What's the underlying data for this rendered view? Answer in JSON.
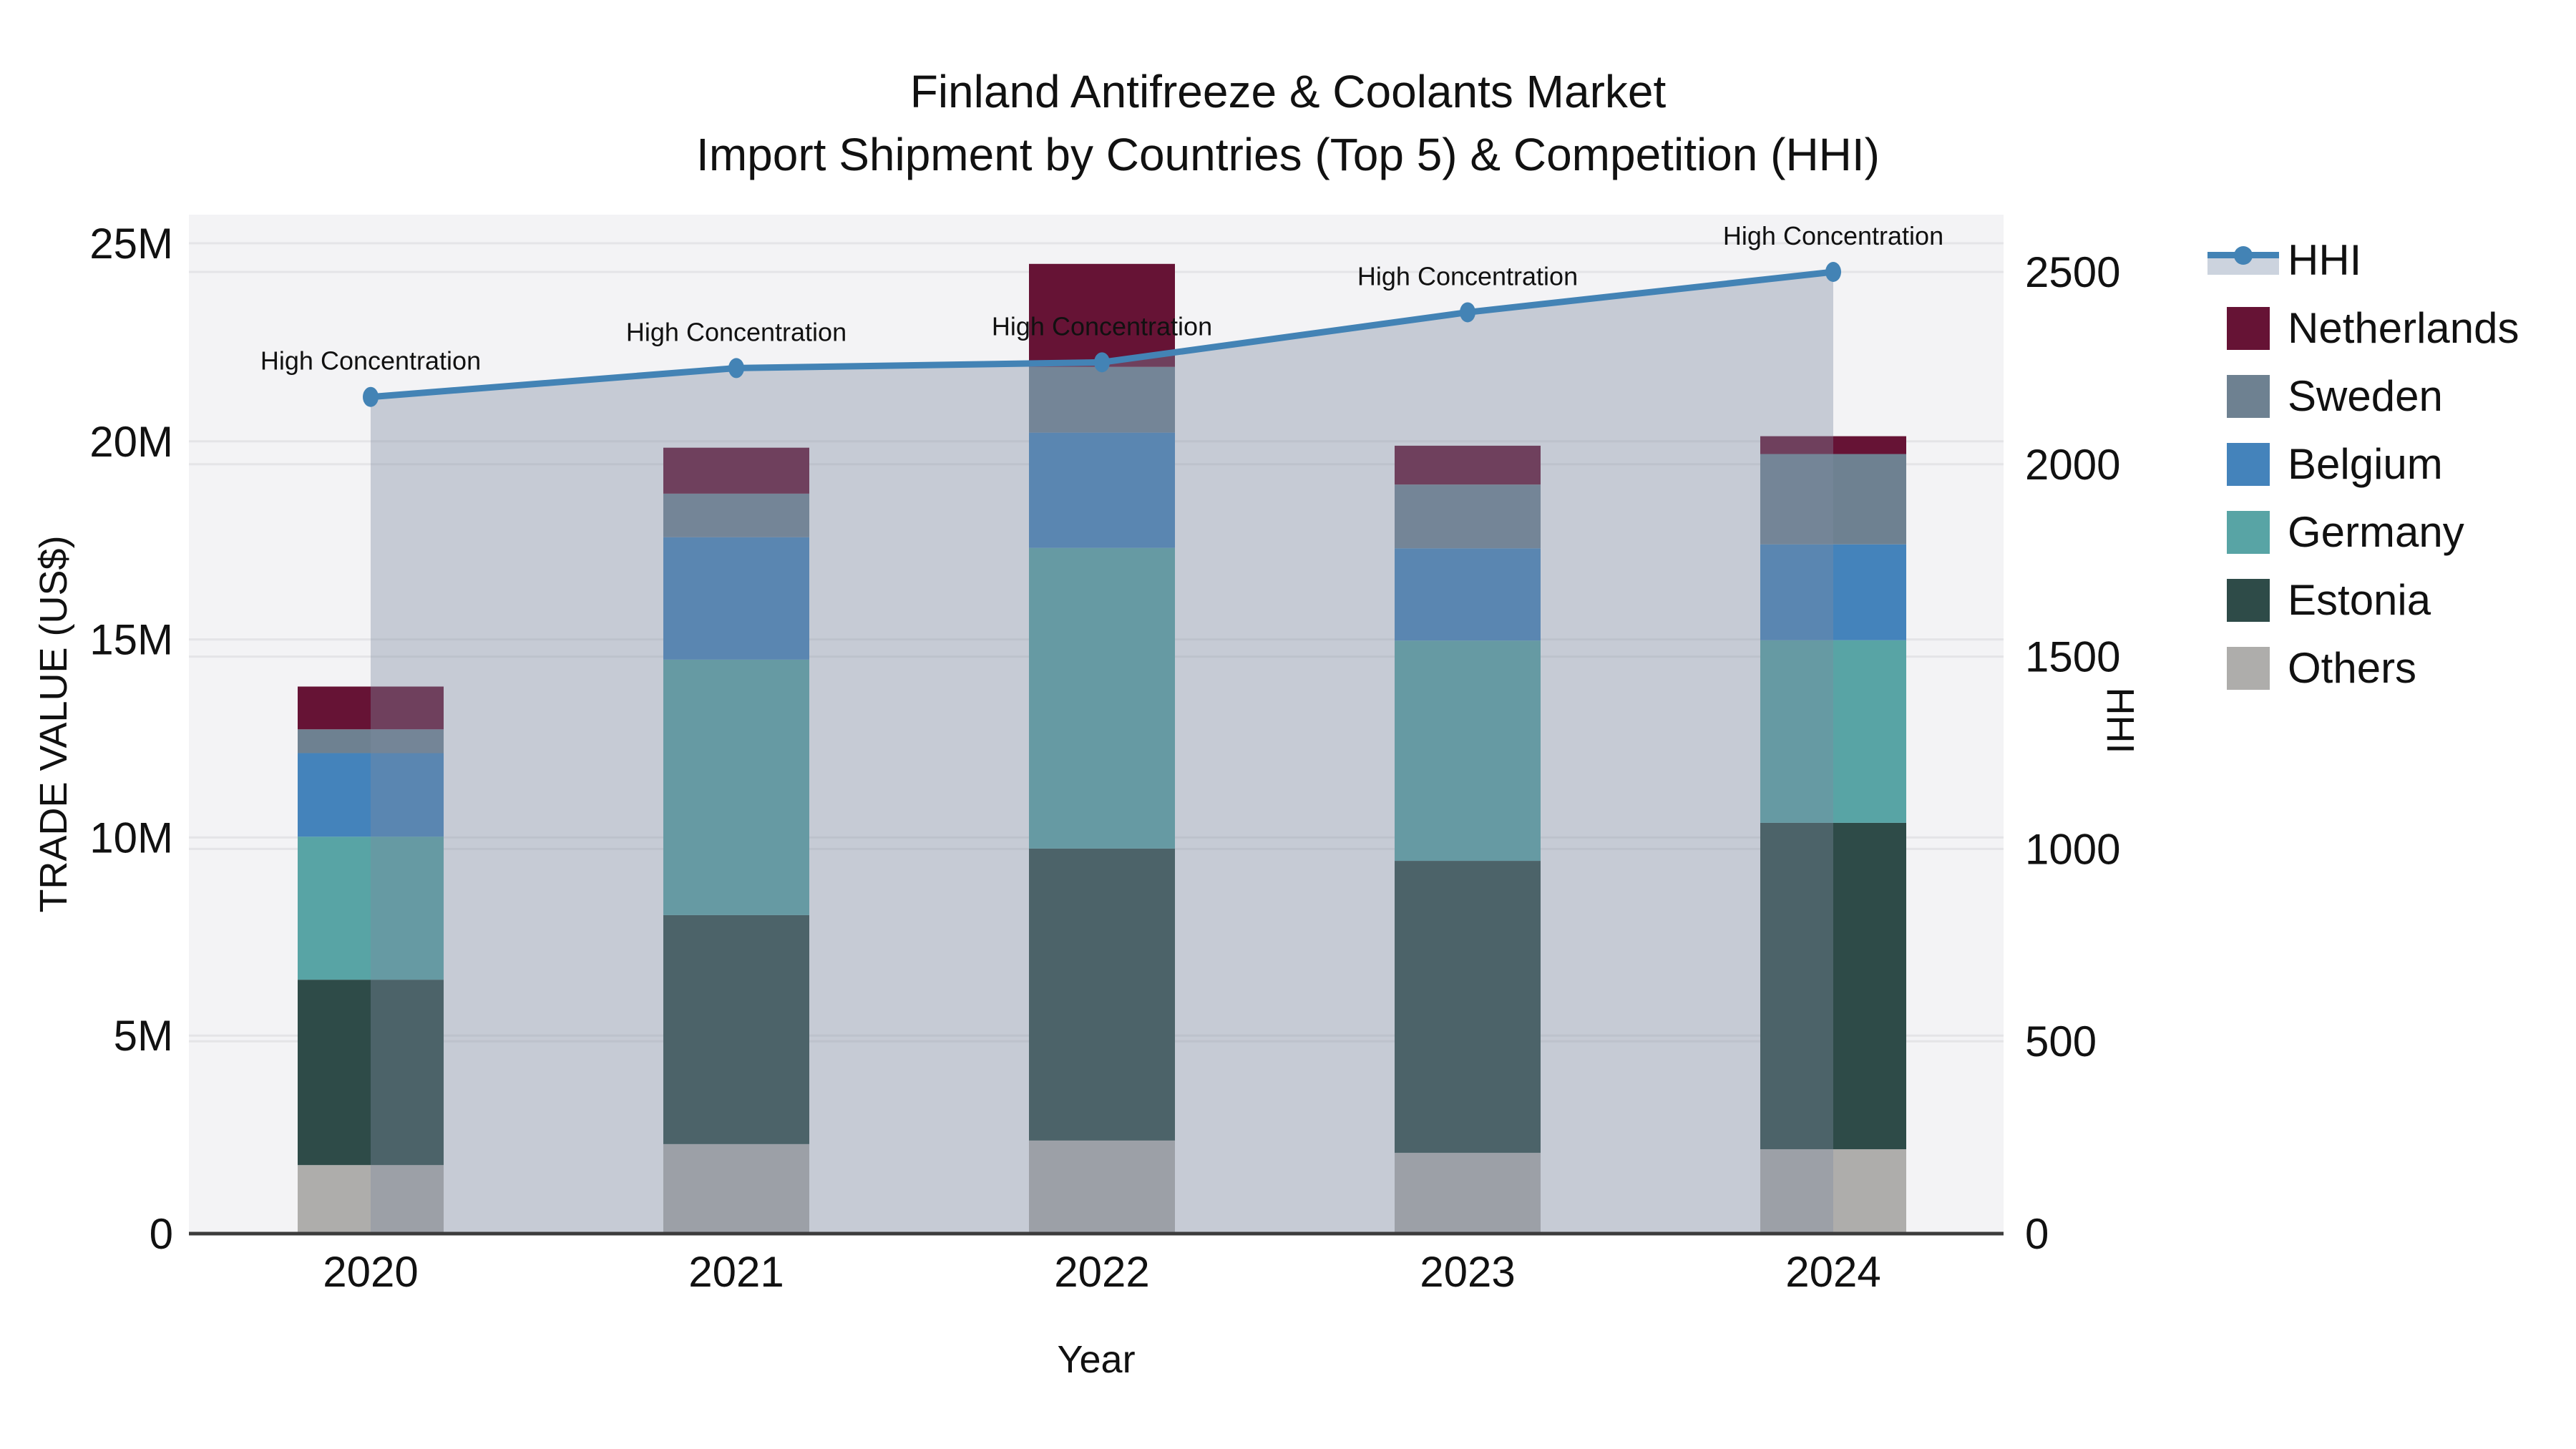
{
  "title": {
    "line1": "Finland Antifreeze & Coolants Market",
    "line2": "Import Shipment by Countries (Top 5) & Competition (HHI)"
  },
  "axes": {
    "x": {
      "label": "Year",
      "categories": [
        "2020",
        "2021",
        "2022",
        "2023",
        "2024"
      ]
    },
    "y_left": {
      "label": "TRADE VALUE (US$)",
      "tick_labels": [
        "0",
        "5M",
        "10M",
        "15M",
        "20M",
        "25M"
      ],
      "tick_values_millions": [
        0,
        5,
        10,
        15,
        20,
        25
      ],
      "max_millions": 25
    },
    "y_right": {
      "label": "HHI",
      "tick_labels": [
        "0",
        "500",
        "1000",
        "1500",
        "2000",
        "2500"
      ],
      "tick_values": [
        0,
        500,
        1000,
        1500,
        2000,
        2500
      ],
      "max": 2500
    }
  },
  "chart_data": {
    "type": "bar",
    "subtype": "stacked-bars-with-hhi-line-and-area",
    "title": "Finland Antifreeze & Coolants Market — Import Shipment by Countries (Top 5) & Competition (HHI)",
    "xlabel": "Year",
    "ylabel_left": "TRADE VALUE (US$)",
    "ylabel_right": "HHI",
    "categories": [
      "2020",
      "2021",
      "2022",
      "2023",
      "2024"
    ],
    "bar_unit": "million US$",
    "ylim_left_millions": [
      0,
      25
    ],
    "ylim_right": [
      0,
      2500
    ],
    "grid": true,
    "legend_position": "right-top-outside",
    "series": [
      {
        "name": "Others",
        "color": "#aeadab",
        "values_millions": [
          1.73,
          2.26,
          2.35,
          2.04,
          2.13
        ]
      },
      {
        "name": "Estonia",
        "color": "#2e4b48",
        "values_millions": [
          4.68,
          5.78,
          7.37,
          7.37,
          8.24
        ]
      },
      {
        "name": "Germany",
        "color": "#58a4a5",
        "values_millions": [
          3.61,
          6.45,
          7.59,
          5.56,
          4.61
        ]
      },
      {
        "name": "Belgium",
        "color": "#4483bb",
        "values_millions": [
          2.11,
          3.09,
          2.91,
          2.33,
          2.42
        ]
      },
      {
        "name": "Sweden",
        "color": "#6e8191",
        "values_millions": [
          0.6,
          1.1,
          1.66,
          1.61,
          2.28
        ]
      },
      {
        "name": "Netherlands",
        "color": "#661335",
        "values_millions": [
          1.08,
          1.16,
          2.6,
          0.98,
          0.45
        ]
      }
    ],
    "bar_totals_millions": [
      13.8,
      19.8,
      24.5,
      19.9,
      20.1
    ],
    "line_series": {
      "name": "HHI",
      "axis": "right",
      "color": "#4383b5",
      "area_fill": "rgba(125,140,160,0.38)",
      "values": [
        2175,
        2250,
        2265,
        2395,
        2500
      ]
    },
    "annotations": {
      "text": "High Concentration",
      "per_point": [
        "High Concentration",
        "High Concentration",
        "High Concentration",
        "High Concentration",
        "High Concentration"
      ]
    }
  },
  "legend": {
    "items": [
      {
        "label": "HHI",
        "type": "line",
        "color": "#4383b5",
        "band_color": "#ccd3de"
      },
      {
        "label": "Netherlands",
        "type": "swatch",
        "color": "#661335"
      },
      {
        "label": "Sweden",
        "type": "swatch",
        "color": "#6e8191"
      },
      {
        "label": "Belgium",
        "type": "swatch",
        "color": "#4483bb"
      },
      {
        "label": "Germany",
        "type": "swatch",
        "color": "#58a4a5"
      },
      {
        "label": "Estonia",
        "type": "swatch",
        "color": "#2e4b48"
      },
      {
        "label": "Others",
        "type": "swatch",
        "color": "#aeadab"
      }
    ]
  },
  "style": {
    "plot_bg": "#f3f3f5",
    "grid_color": "#e4e4e7",
    "axis_line_color": "#3c3c3c",
    "text_color": "#111111"
  }
}
